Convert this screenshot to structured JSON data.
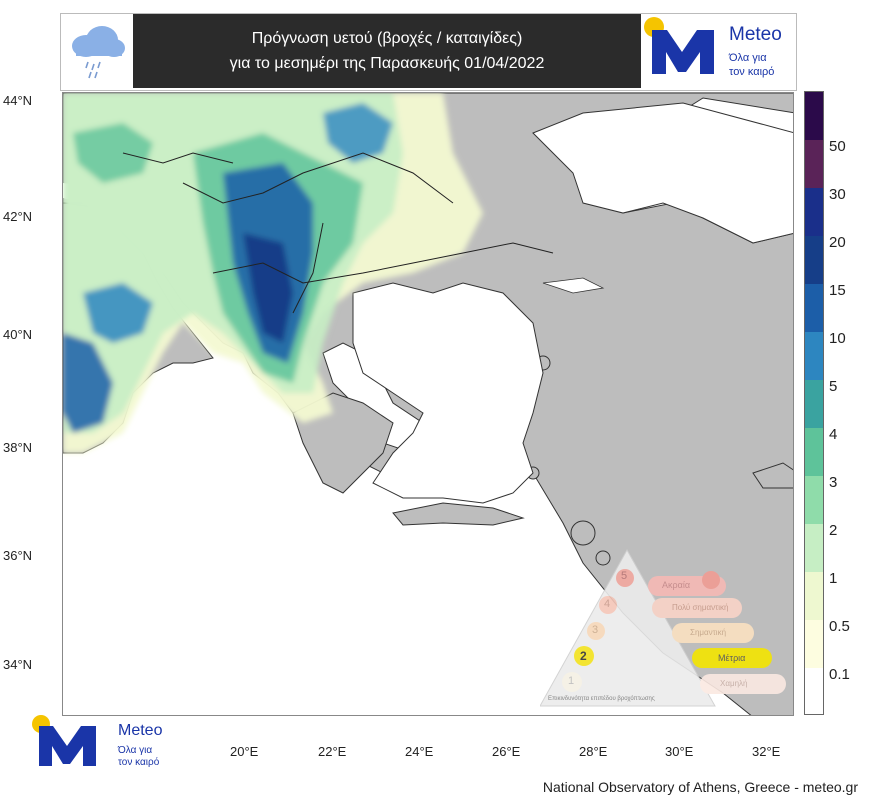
{
  "header": {
    "title_line1": "Πρόγνωση υετού (βροχές / καταιγίδες)",
    "title_line2": "για το μεσημέρι της Παρασκευής 01/04/2022",
    "icon": "rain-cloud-icon"
  },
  "brand": {
    "name": "Meteo",
    "slogan_line1": "Όλα για",
    "slogan_line2": "τον καιρό",
    "colors": {
      "blue": "#1a35a8",
      "yellow": "#f5c400"
    }
  },
  "map": {
    "lat_labels": [
      "44°N",
      "42°N",
      "40°N",
      "38°N",
      "36°N",
      "34°N"
    ],
    "lon_labels": [
      "20°E",
      "22°E",
      "24°E",
      "26°E",
      "28°E",
      "30°E",
      "32°E"
    ],
    "land_color": "#bdbdbd",
    "sea_color": "#ffffff"
  },
  "legend": {
    "labels": [
      "50",
      "30",
      "20",
      "15",
      "10",
      "5",
      "4",
      "3",
      "2",
      "1",
      "0.5",
      "0.1"
    ],
    "colors": [
      "#2b0a4a",
      "#5a2358",
      "#1a2f8a",
      "#163e88",
      "#1c5ea8",
      "#2d86c0",
      "#3aa3a0",
      "#5ec39a",
      "#8fdcaa",
      "#c6eec4",
      "#eef8d0",
      "#fdfde0",
      "#ffffff"
    ]
  },
  "warning_pyramid": {
    "levels": [
      {
        "num": "5",
        "label": "Ακραία"
      },
      {
        "num": "4",
        "label": "Πολύ σημαντική"
      },
      {
        "num": "3",
        "label": "Σημαντική"
      },
      {
        "num": "2",
        "label": "Μέτρια"
      },
      {
        "num": "1",
        "label": "Χαμηλή"
      }
    ],
    "active_level": "2",
    "caption": "Επικινδυνότητα επιπέδου βροχόπτωσης"
  },
  "footer": {
    "credit": "National Observatory of Athens, Greece - meteo.gr"
  }
}
